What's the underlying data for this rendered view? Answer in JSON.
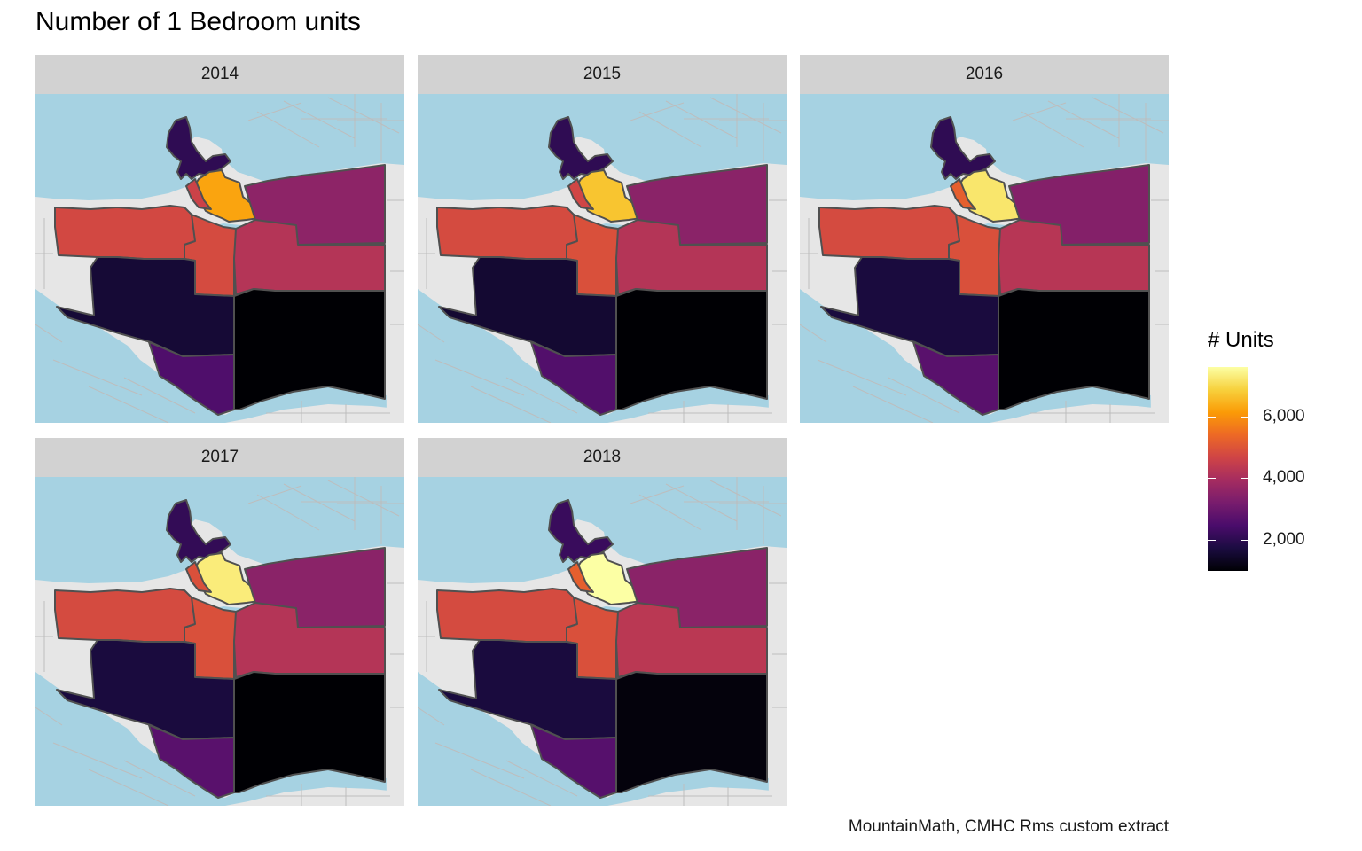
{
  "title": "Number of 1 Bedroom units",
  "caption": "MountainMath, CMHC Rms custom extract",
  "legend": {
    "title": "# Units",
    "min": 1000,
    "max": 7600,
    "ticks": [
      {
        "value": 2000,
        "label": "2,000"
      },
      {
        "value": 4000,
        "label": "4,000"
      },
      {
        "value": 6000,
        "label": "6,000"
      }
    ],
    "colors": [
      "#000004",
      "#1b0c41",
      "#4a0c6b",
      "#781c6d",
      "#a52c60",
      "#cf4446",
      "#ed6925",
      "#fb9b06",
      "#f7d13d",
      "#fcffa4"
    ]
  },
  "map_colors": {
    "water": "#a6d2e2",
    "land": "#e6e6e6",
    "road": "#bdbdbd",
    "border": "#505050"
  },
  "panels": [
    {
      "year": "2014",
      "values": {
        "stanley_park": 2050,
        "west_end": 6250,
        "west_end_downtown": 4600,
        "kitsilano": 4750,
        "mount_pleasant": 4800,
        "east_hastings": 3550,
        "grandview": 4200,
        "west_side_south": 1600,
        "south_granville": 2550,
        "south_east": 1000
      }
    },
    {
      "year": "2015",
      "values": {
        "stanley_park": 2050,
        "west_end": 6700,
        "west_end_downtown": 4700,
        "kitsilano": 4800,
        "mount_pleasant": 4900,
        "east_hastings": 3500,
        "grandview": 4200,
        "west_side_south": 1550,
        "south_granville": 2600,
        "south_east": 950
      }
    },
    {
      "year": "2016",
      "values": {
        "stanley_park": 2050,
        "west_end": 7200,
        "west_end_downtown": 5200,
        "kitsilano": 4800,
        "mount_pleasant": 4900,
        "east_hastings": 3400,
        "grandview": 4250,
        "west_side_south": 1700,
        "south_granville": 2700,
        "south_east": 1000
      }
    },
    {
      "year": "2017",
      "values": {
        "stanley_park": 2100,
        "west_end": 7300,
        "west_end_downtown": 4900,
        "kitsilano": 4800,
        "mount_pleasant": 4900,
        "east_hastings": 3500,
        "grandview": 4200,
        "west_side_south": 1700,
        "south_granville": 2700,
        "south_east": 1000
      }
    },
    {
      "year": "2018",
      "values": {
        "stanley_park": 2200,
        "west_end": 7600,
        "west_end_downtown": 5200,
        "kitsilano": 4800,
        "mount_pleasant": 4900,
        "east_hastings": 3500,
        "grandview": 4300,
        "west_side_south": 1700,
        "south_granville": 2650,
        "south_east": 1100
      }
    }
  ]
}
